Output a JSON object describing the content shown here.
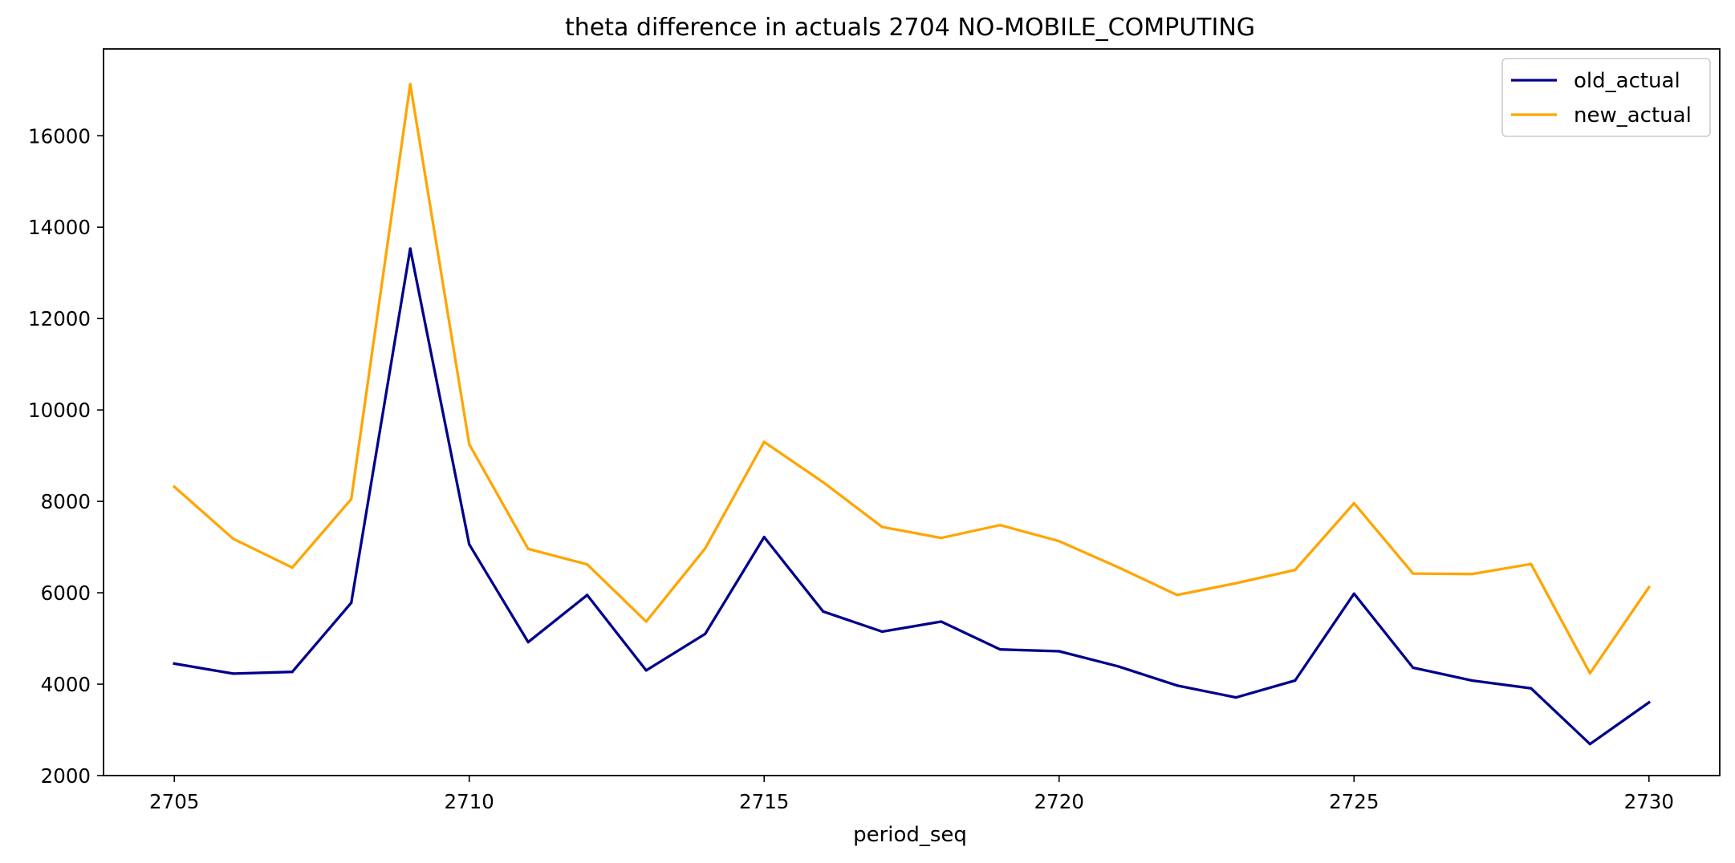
{
  "chart_data": {
    "type": "line",
    "title": "theta difference in actuals 2704 NO-MOBILE_COMPUTING",
    "xlabel": "period_seq",
    "ylabel": "",
    "x": [
      2705,
      2706,
      2707,
      2708,
      2709,
      2710,
      2711,
      2712,
      2713,
      2714,
      2715,
      2716,
      2717,
      2718,
      2719,
      2720,
      2721,
      2722,
      2723,
      2724,
      2725,
      2726,
      2727,
      2728,
      2729,
      2730
    ],
    "xlim": [
      2703.8,
      2731.2
    ],
    "ylim": [
      2000,
      17900
    ],
    "xticks": [
      2705,
      2710,
      2715,
      2720,
      2725,
      2730
    ],
    "yticks": [
      2000,
      4000,
      6000,
      8000,
      10000,
      12000,
      14000,
      16000
    ],
    "grid": false,
    "legend_position": "top-right",
    "series": [
      {
        "name": "old_actual",
        "color": "#00008b",
        "values": [
          4450,
          4230,
          4270,
          5780,
          13530,
          7060,
          4920,
          5950,
          4300,
          5100,
          7220,
          5590,
          5150,
          5370,
          4760,
          4720,
          4390,
          3970,
          3710,
          4080,
          5980,
          4360,
          4080,
          3910,
          2690,
          3600
        ]
      },
      {
        "name": "new_actual",
        "color": "#ffa500",
        "values": [
          8320,
          7180,
          6550,
          8050,
          17130,
          9250,
          6960,
          6620,
          5370,
          6970,
          9300,
          8420,
          7440,
          7200,
          7480,
          7130,
          6560,
          5950,
          6210,
          6500,
          7960,
          6420,
          6410,
          6630,
          4240,
          6120
        ]
      }
    ]
  }
}
